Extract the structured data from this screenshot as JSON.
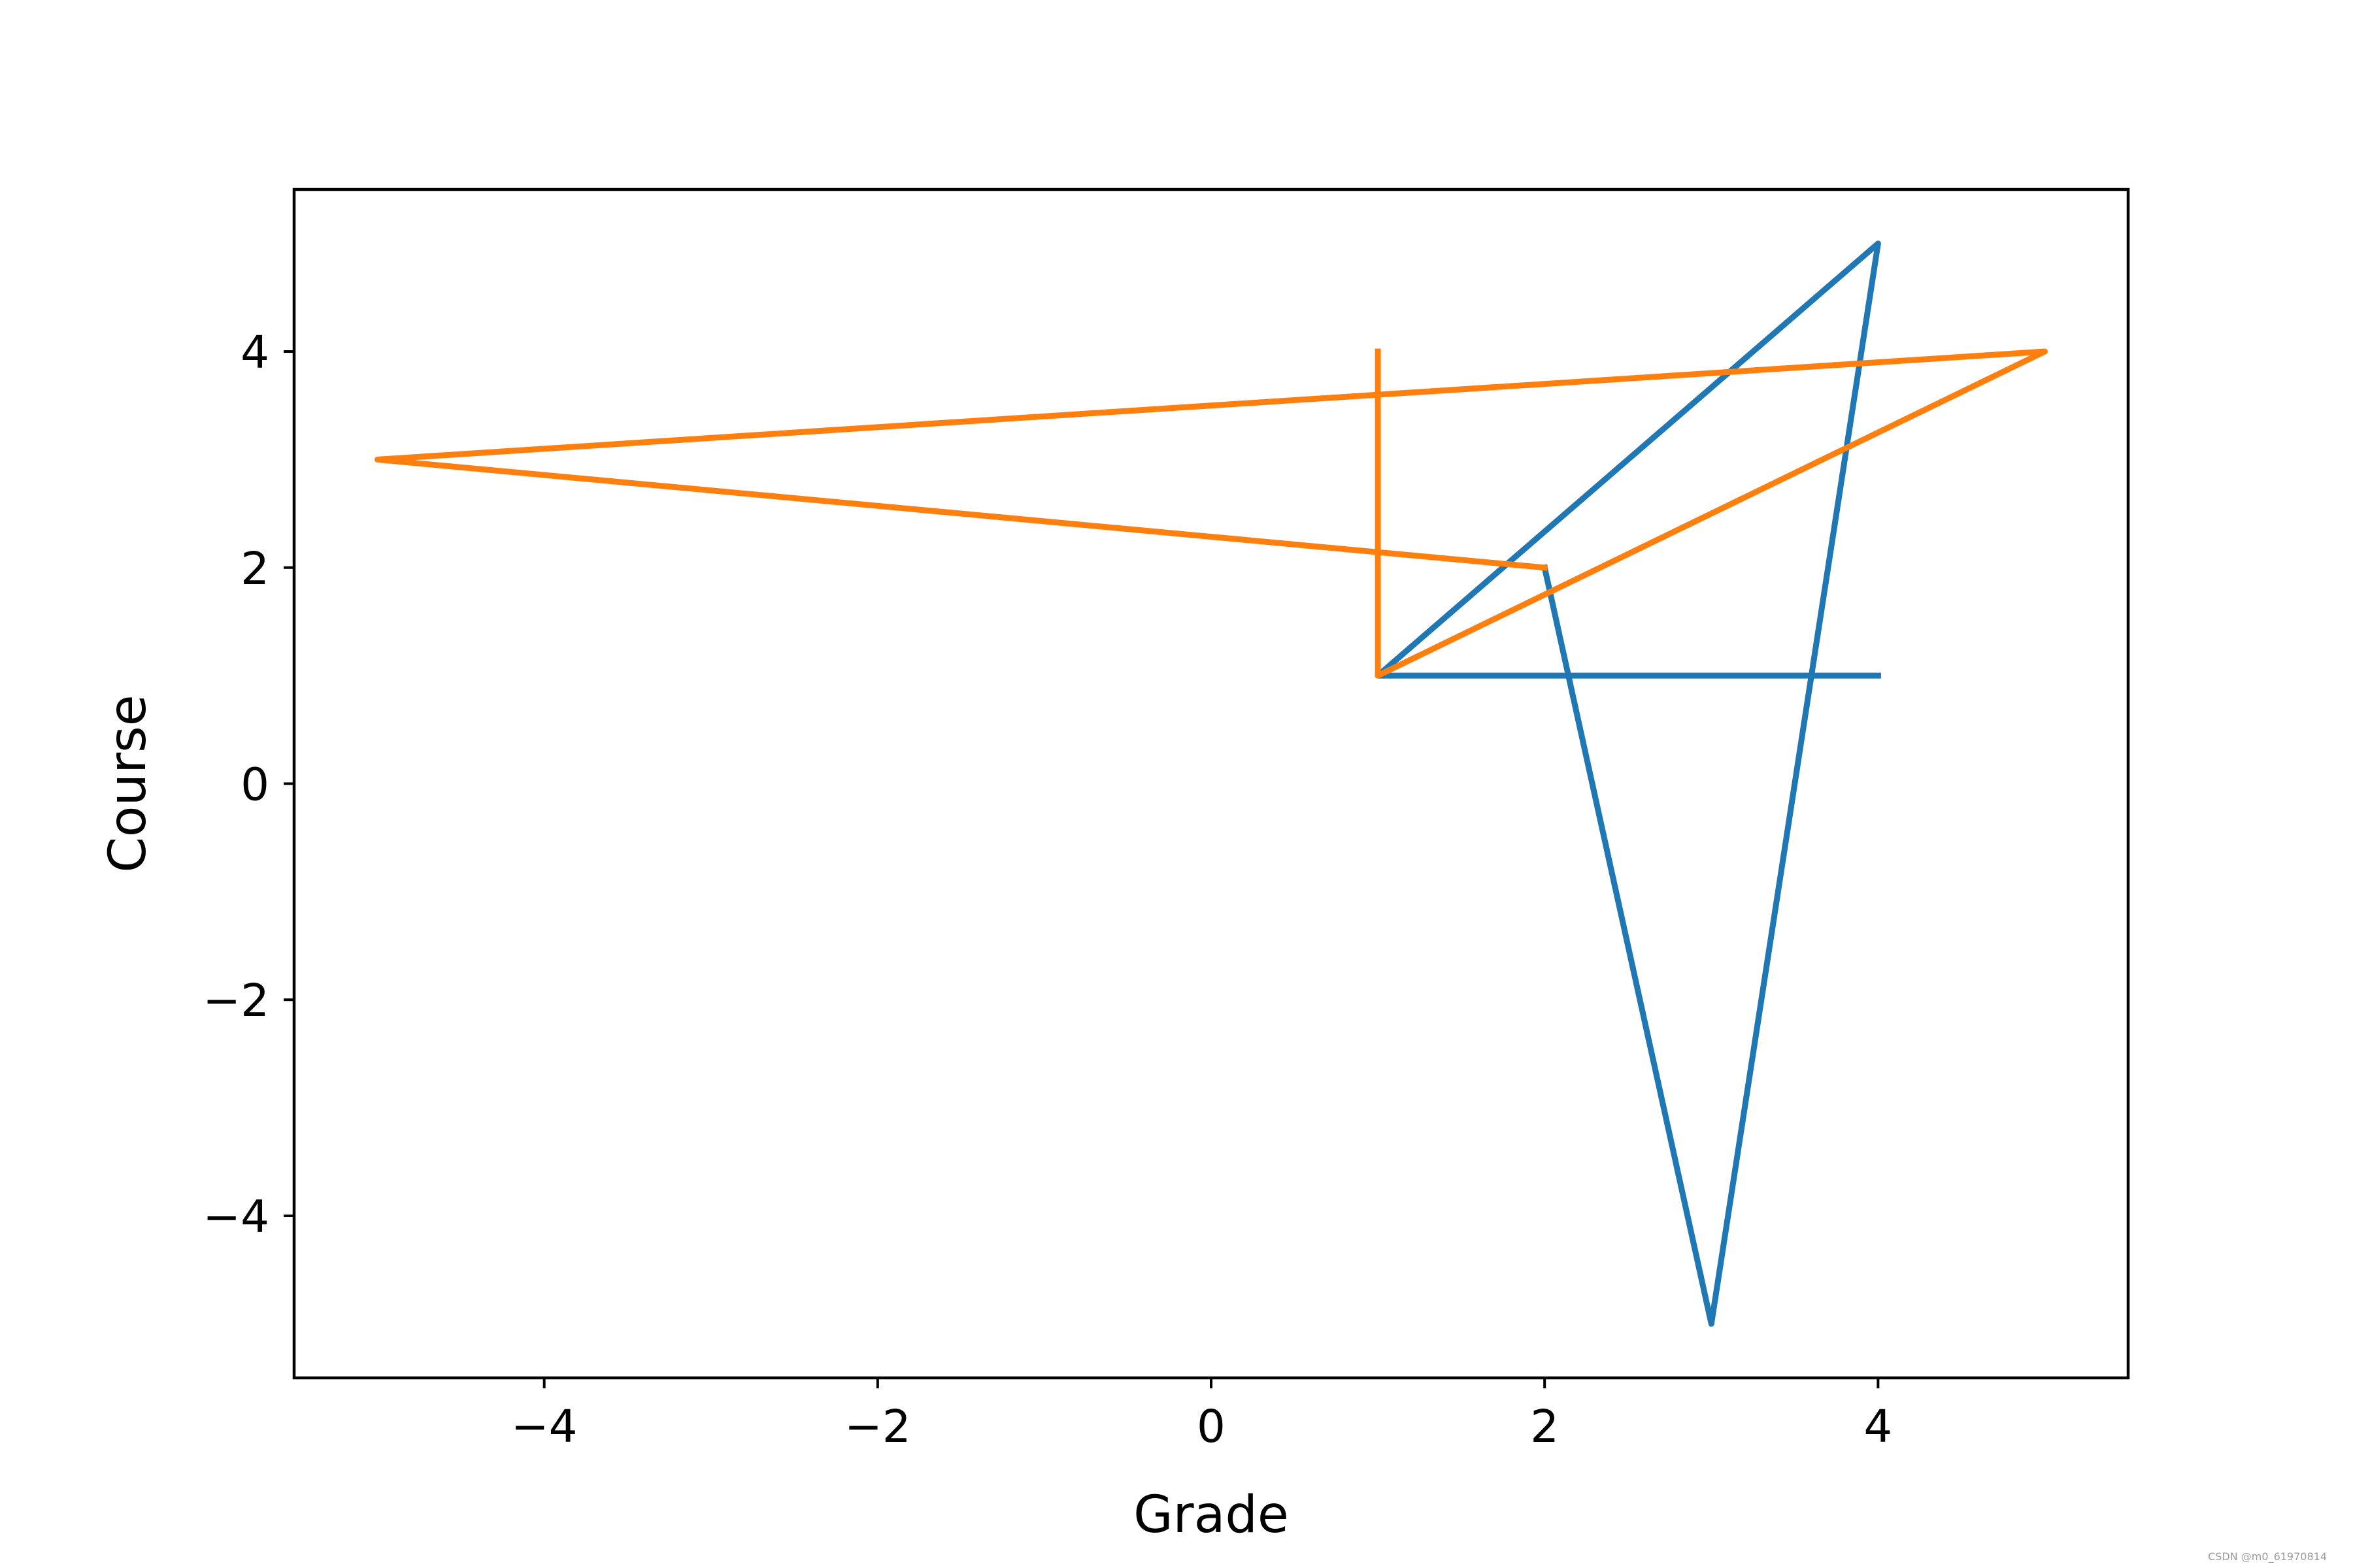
{
  "chart_data": {
    "type": "line",
    "title": "",
    "xlabel": "Grade",
    "ylabel": "Course",
    "xlim": [
      -5.5,
      5.5
    ],
    "ylim": [
      -5.5,
      5.5
    ],
    "xticks": [
      -4,
      -2,
      0,
      2,
      4
    ],
    "yticks": [
      -4,
      -2,
      0,
      2,
      4
    ],
    "xtick_labels": [
      "−4",
      "−2",
      "0",
      "2",
      "4"
    ],
    "ytick_labels": [
      "−4",
      "−2",
      "0",
      "2",
      "4"
    ],
    "grid": false,
    "legend": "none",
    "series": [
      {
        "color": "#1f77b4",
        "x": [
          4,
          1,
          4,
          3,
          2
        ],
        "y": [
          1,
          1,
          5,
          -5,
          2
        ]
      },
      {
        "color": "#ff7f0e",
        "x": [
          2,
          -5,
          5,
          1,
          1
        ],
        "y": [
          2,
          3,
          4,
          1,
          4
        ]
      }
    ]
  },
  "watermark": "CSDN @m0_61970814"
}
